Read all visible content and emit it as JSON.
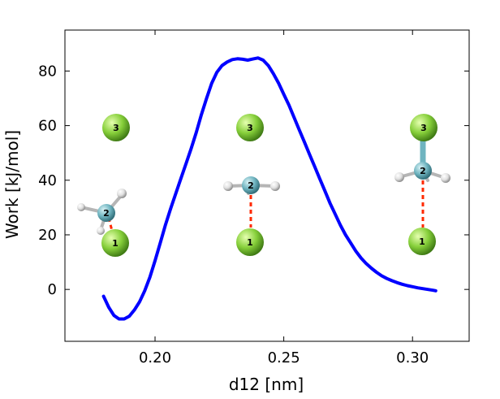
{
  "chart_data": {
    "type": "line",
    "xlabel": "d12 [nm]",
    "ylabel": "Work [kJ/mol]",
    "xlim": [
      0.165,
      0.322
    ],
    "ylim": [
      -19,
      95
    ],
    "xticks": [
      0.2,
      0.25,
      0.3
    ],
    "xtick_labels": [
      "0.20",
      "0.25",
      "0.30"
    ],
    "yticks": [
      0,
      20,
      40,
      60,
      80
    ],
    "ytick_labels": [
      "0",
      "20",
      "40",
      "60",
      "80"
    ],
    "grid": false,
    "series_color": "#0000ff",
    "series": [
      {
        "x": [
          0.18,
          0.182,
          0.184,
          0.186,
          0.188,
          0.19,
          0.192,
          0.194,
          0.196,
          0.198,
          0.2,
          0.202,
          0.204,
          0.206,
          0.208,
          0.21,
          0.212,
          0.214,
          0.216,
          0.218,
          0.22,
          0.222,
          0.224,
          0.226,
          0.228,
          0.23,
          0.232,
          0.234,
          0.236,
          0.238,
          0.24,
          0.242,
          0.244,
          0.246,
          0.248,
          0.25,
          0.252,
          0.254,
          0.256,
          0.258,
          0.26,
          0.262,
          0.264,
          0.266,
          0.268,
          0.27,
          0.272,
          0.274,
          0.276,
          0.278,
          0.28,
          0.282,
          0.284,
          0.286,
          0.288,
          0.29,
          0.292,
          0.294,
          0.296,
          0.298,
          0.3,
          0.302,
          0.304,
          0.306,
          0.308,
          0.309
        ],
        "y": [
          -2.5,
          -6.5,
          -9.5,
          -10.8,
          -10.8,
          -9.8,
          -7.5,
          -4.5,
          -0.5,
          4.5,
          10.5,
          17,
          23.5,
          29.5,
          35,
          40.5,
          46,
          51.5,
          57.5,
          64,
          70,
          75.5,
          79.5,
          82,
          83.3,
          84.2,
          84.5,
          84.3,
          84.0,
          84.4,
          84.8,
          84.0,
          82.0,
          79.0,
          75.5,
          71.5,
          67.5,
          63.0,
          58.5,
          54.0,
          49.5,
          45.0,
          40.5,
          36.0,
          31.5,
          27.5,
          23.5,
          20.0,
          17.0,
          14.0,
          11.5,
          9.5,
          7.8,
          6.3,
          5.0,
          4.0,
          3.2,
          2.5,
          1.9,
          1.4,
          1.0,
          0.6,
          0.3,
          0.0,
          -0.3,
          -0.5
        ]
      }
    ],
    "atom_labels": [
      "1",
      "2",
      "3"
    ]
  }
}
